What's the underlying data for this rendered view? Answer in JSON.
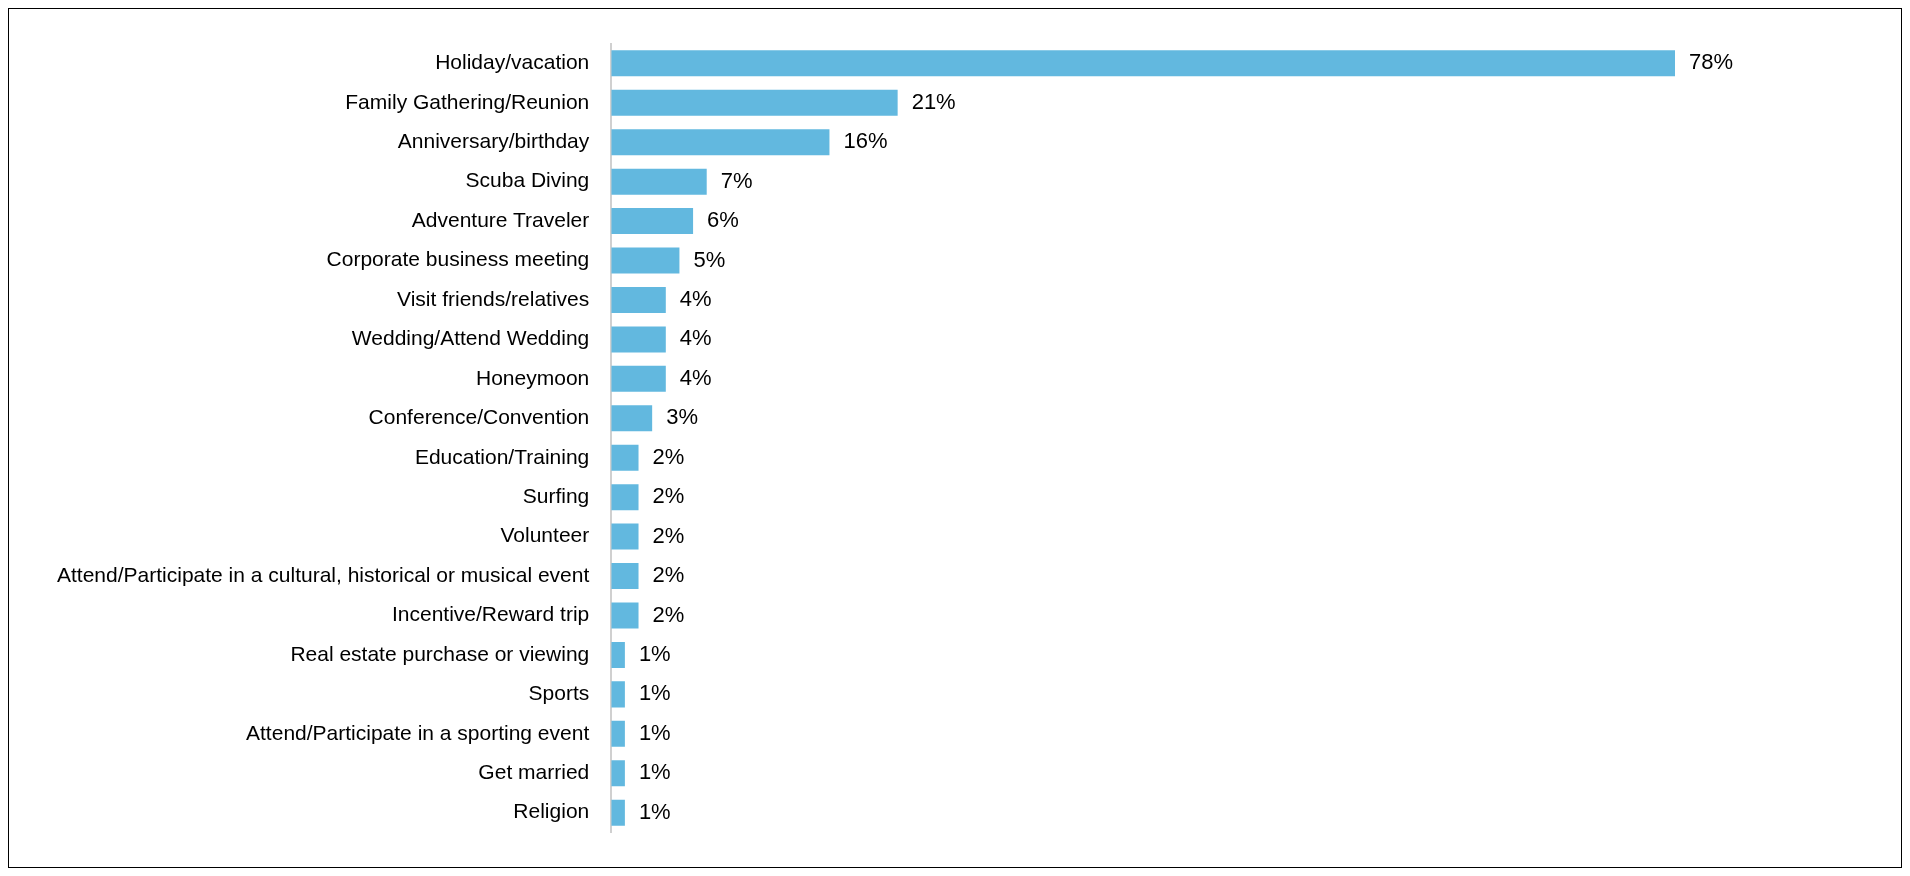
{
  "chart_data": {
    "type": "bar",
    "orientation": "horizontal",
    "categories": [
      "Holiday/vacation",
      "Family Gathering/Reunion",
      "Anniversary/birthday",
      "Scuba Diving",
      "Adventure Traveler",
      "Corporate business meeting",
      "Visit friends/relatives",
      "Wedding/Attend Wedding",
      "Honeymoon",
      "Conference/Convention",
      "Education/Training",
      "Surfing",
      "Volunteer",
      "Attend/Participate in a cultural, historical or musical event",
      "Incentive/Reward trip",
      "Real estate purchase or viewing",
      "Sports",
      "Attend/Participate in a sporting event",
      "Get married",
      "Religion"
    ],
    "values": [
      78,
      21,
      16,
      7,
      6,
      5,
      4,
      4,
      4,
      3,
      2,
      2,
      2,
      2,
      2,
      1,
      1,
      1,
      1,
      1
    ],
    "value_labels": [
      "78%",
      "21%",
      "16%",
      "7%",
      "6%",
      "5%",
      "4%",
      "4%",
      "4%",
      "3%",
      "2%",
      "2%",
      "2%",
      "2%",
      "2%",
      "1%",
      "1%",
      "1%",
      "1%",
      "1%"
    ],
    "color": "#62b8df",
    "legend": false,
    "grid": false
  }
}
